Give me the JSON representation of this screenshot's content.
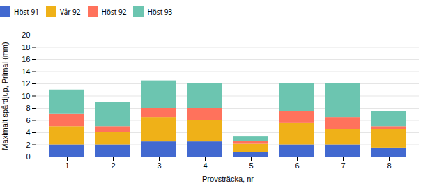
{
  "chart_data": {
    "type": "bar",
    "stacked": true,
    "categories": [
      "1",
      "2",
      "3",
      "4",
      "5",
      "6",
      "7",
      "8"
    ],
    "series": [
      {
        "name": "Höst 91",
        "values": [
          2.0,
          2.0,
          2.5,
          2.5,
          0.8,
          2.0,
          2.0,
          1.5
        ]
      },
      {
        "name": "Vår 92",
        "values": [
          3.0,
          2.0,
          4.0,
          3.5,
          1.3,
          3.5,
          2.5,
          3.0
        ]
      },
      {
        "name": "Höst 92",
        "values": [
          2.0,
          1.0,
          1.5,
          2.0,
          0.5,
          2.0,
          2.0,
          0.5
        ]
      },
      {
        "name": "Höst 93",
        "values": [
          4.0,
          4.0,
          4.5,
          4.0,
          0.7,
          4.5,
          5.5,
          2.5
        ]
      }
    ],
    "xlabel": "Provsträcka, nr",
    "ylabel": "Maximalt spårdjup, Primal (mm)",
    "ylim": [
      0,
      20
    ],
    "yticks": [
      0,
      2,
      4,
      6,
      8,
      10,
      12,
      14,
      16,
      18,
      20
    ],
    "grid": true,
    "legend": "top"
  }
}
